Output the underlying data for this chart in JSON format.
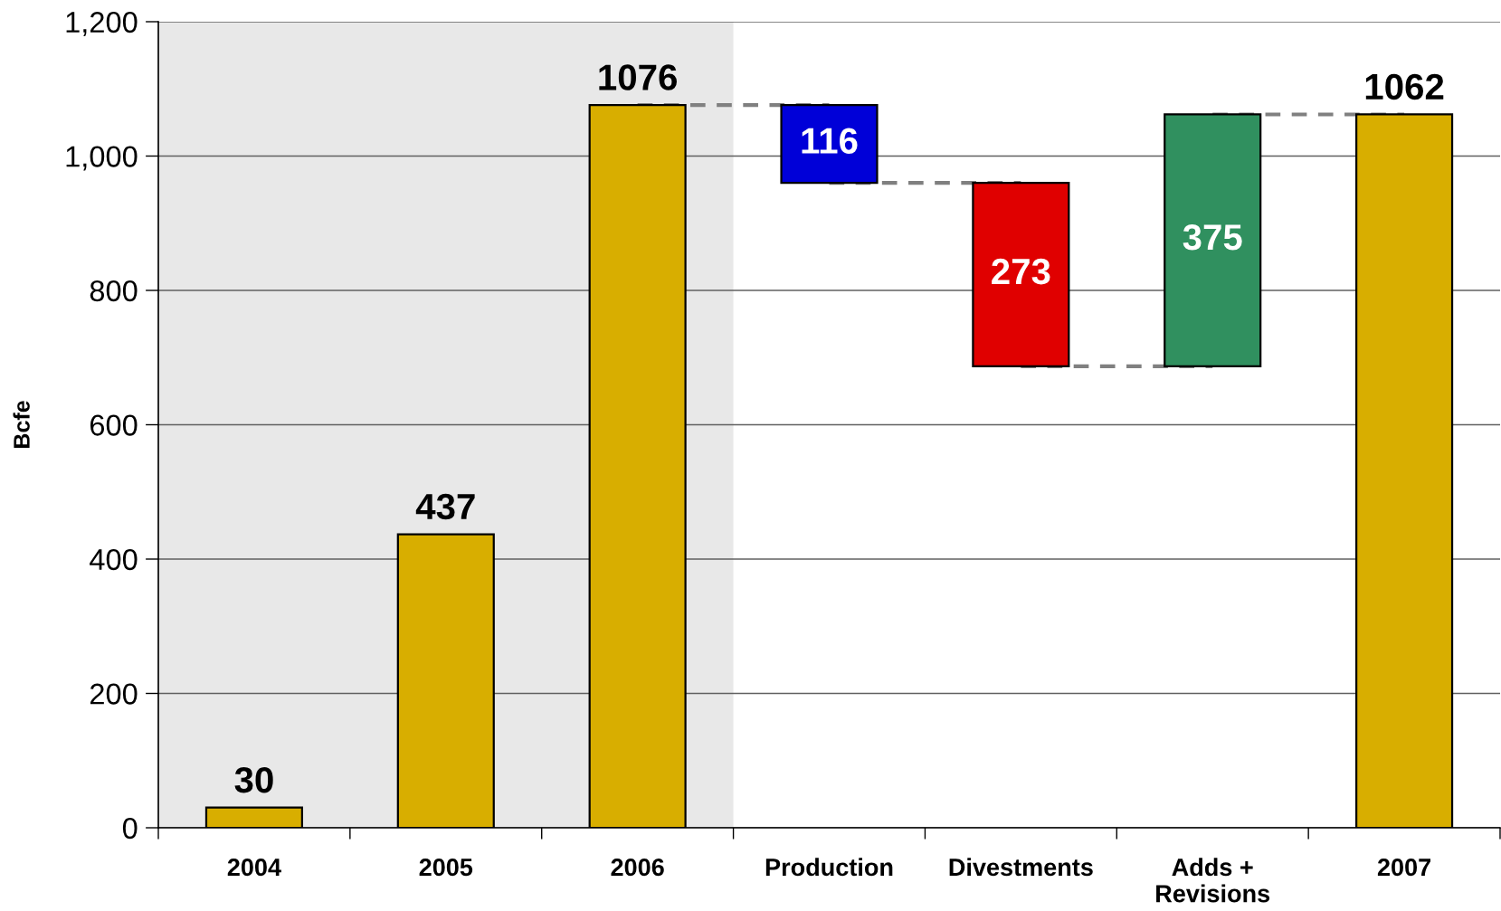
{
  "chart_data": {
    "type": "bar",
    "ylabel": "Bcfe",
    "categories": [
      "2004",
      "2005",
      "2006",
      "Production",
      "Divestments",
      "Adds +\nRevisions",
      "2007"
    ],
    "series": [
      {
        "values": [
          30,
          437,
          1076,
          116,
          273,
          375,
          1062
        ],
        "base": [
          null,
          null,
          null,
          960,
          687,
          687,
          null
        ],
        "colors": [
          "#d8ae00",
          "#d8ae00",
          "#d8ae00",
          "#0000d8",
          "#e00000",
          "#30905f",
          "#d8ae00"
        ],
        "value_labels": [
          "30",
          "437",
          "1076",
          "116",
          "273",
          "375",
          "1062"
        ]
      },
      {
        "type": "line",
        "color": "#808080",
        "line_style": "dashed",
        "values": [
          null,
          null,
          1076,
          1076,
          null,
          null,
          null
        ]
      },
      {
        "type": "line",
        "color": "#808080",
        "line_style": "dashed",
        "values": [
          null,
          null,
          null,
          960,
          960,
          null,
          null
        ]
      },
      {
        "type": "line",
        "color": "#808080",
        "line_style": "dashed",
        "values": [
          null,
          null,
          null,
          null,
          687,
          687,
          null
        ]
      },
      {
        "type": "line",
        "color": "#808080",
        "line_style": "dashed",
        "values": [
          null,
          null,
          null,
          null,
          null,
          1062,
          1062
        ]
      }
    ],
    "ylim": [
      0,
      1200
    ],
    "yticks": [
      0,
      200,
      400,
      600,
      800,
      {
        "value": 1000,
        "label": "1,000"
      },
      {
        "value": 1200,
        "label": "1,200"
      }
    ],
    "grid": "y",
    "bands": [
      {
        "axis": "x",
        "from": "2004",
        "to": "2006",
        "color": "#e8e8e8"
      }
    ]
  }
}
